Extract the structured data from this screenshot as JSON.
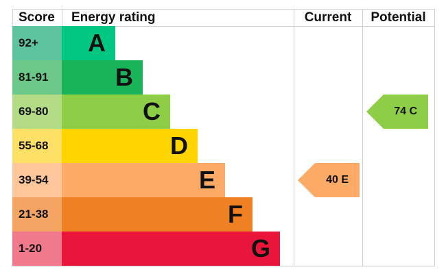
{
  "chart_data": {
    "type": "table",
    "headers": {
      "score": "Score",
      "rating": "Energy rating",
      "current": "Current",
      "potential": "Potential"
    },
    "bands": [
      {
        "letter": "A",
        "range": "92+",
        "color": "#00c781",
        "score_color": "#5ec49e"
      },
      {
        "letter": "B",
        "range": "81-91",
        "color": "#19b459",
        "score_color": "#6cc889"
      },
      {
        "letter": "C",
        "range": "69-80",
        "color": "#8dce46",
        "score_color": "#b4dc86"
      },
      {
        "letter": "D",
        "range": "55-68",
        "color": "#ffd500",
        "score_color": "#ffe066"
      },
      {
        "letter": "E",
        "range": "39-54",
        "color": "#fcaa65",
        "score_color": "#fdc69b"
      },
      {
        "letter": "F",
        "range": "21-38",
        "color": "#ef8023",
        "score_color": "#f4a463"
      },
      {
        "letter": "G",
        "range": "1-20",
        "color": "#e9153b",
        "score_color": "#f07a8c"
      }
    ],
    "current": {
      "value": 40,
      "letter": "E",
      "label": "40  E",
      "color": "#fcaa65"
    },
    "potential": {
      "value": 74,
      "letter": "C",
      "label": "74  C",
      "color": "#8dce46"
    }
  }
}
